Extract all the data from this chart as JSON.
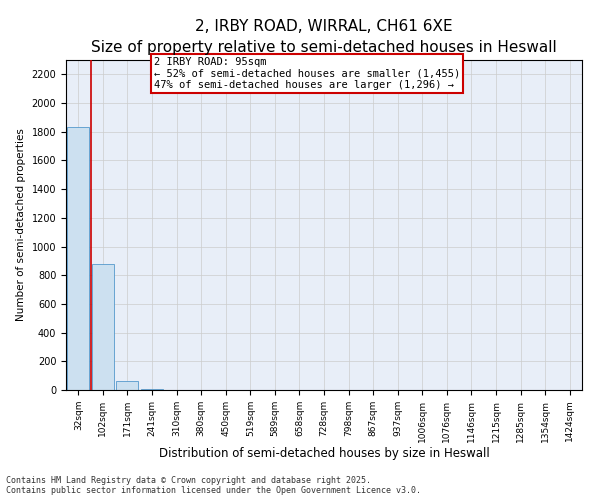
{
  "title": "2, IRBY ROAD, WIRRAL, CH61 6XE",
  "subtitle": "Size of property relative to semi-detached houses in Heswall",
  "xlabel": "Distribution of semi-detached houses by size in Heswall",
  "ylabel": "Number of semi-detached properties",
  "categories": [
    "32sqm",
    "102sqm",
    "171sqm",
    "241sqm",
    "310sqm",
    "380sqm",
    "450sqm",
    "519sqm",
    "589sqm",
    "658sqm",
    "728sqm",
    "798sqm",
    "867sqm",
    "937sqm",
    "1006sqm",
    "1076sqm",
    "1146sqm",
    "1215sqm",
    "1285sqm",
    "1354sqm",
    "1424sqm"
  ],
  "values": [
    1830,
    880,
    60,
    5,
    0,
    0,
    0,
    0,
    0,
    0,
    0,
    0,
    0,
    0,
    0,
    0,
    0,
    0,
    0,
    0,
    0
  ],
  "bar_color": "#cce0f0",
  "bar_edge_color": "#5599cc",
  "annotation_text": "2 IRBY ROAD: 95sqm\n← 52% of semi-detached houses are smaller (1,455)\n47% of semi-detached houses are larger (1,296) →",
  "ylim": [
    0,
    2300
  ],
  "yticks": [
    0,
    200,
    400,
    600,
    800,
    1000,
    1200,
    1400,
    1600,
    1800,
    2000,
    2200
  ],
  "vline_color": "#cc0000",
  "annotation_box_color": "#cc0000",
  "grid_color": "#cccccc",
  "bg_color": "#e8eef8",
  "footer": "Contains HM Land Registry data © Crown copyright and database right 2025.\nContains public sector information licensed under the Open Government Licence v3.0.",
  "title_fontsize": 11,
  "subtitle_fontsize": 9,
  "xlabel_fontsize": 8.5,
  "ylabel_fontsize": 7.5,
  "tick_fontsize": 7,
  "annotation_fontsize": 7.5,
  "footer_fontsize": 6
}
